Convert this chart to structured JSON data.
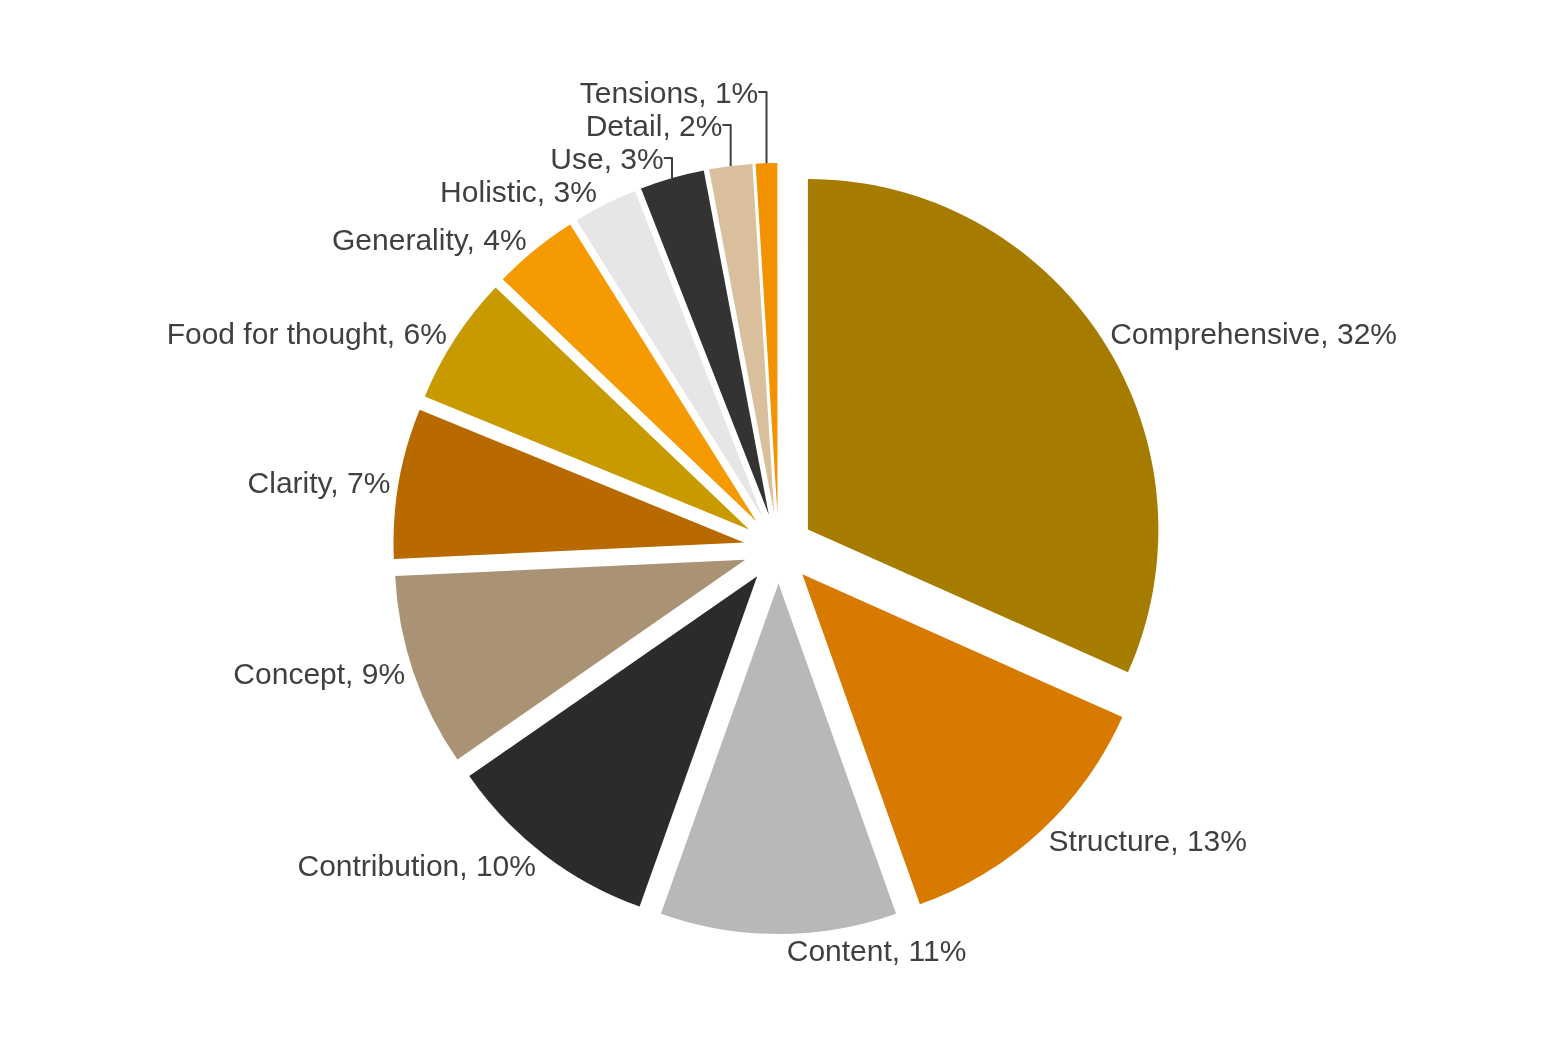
{
  "chart_data": {
    "type": "pie",
    "categories": [
      "Comprehensive",
      "Structure",
      "Content",
      "Contribution",
      "Concept",
      "Clarity",
      "Food for thought",
      "Generality",
      "Holistic",
      "Use",
      "Detail",
      "Tensions"
    ],
    "values": [
      32,
      13,
      11,
      10,
      9,
      7,
      6,
      4,
      3,
      3,
      2,
      1
    ],
    "value_labels": [
      "32%",
      "13%",
      "11%",
      "10%",
      "9%",
      "7%",
      "6%",
      "4%",
      "3%",
      "3%",
      "2%",
      "1%"
    ],
    "colors": [
      "#a57c00",
      "#d87a00",
      "#b8b8b8",
      "#2b2b2b",
      "#aa9275",
      "#b86a00",
      "#c99a00",
      "#f59a00",
      "#e6e6e6",
      "#333333",
      "#d9bf9c",
      "#f39200"
    ],
    "legend": false
  }
}
